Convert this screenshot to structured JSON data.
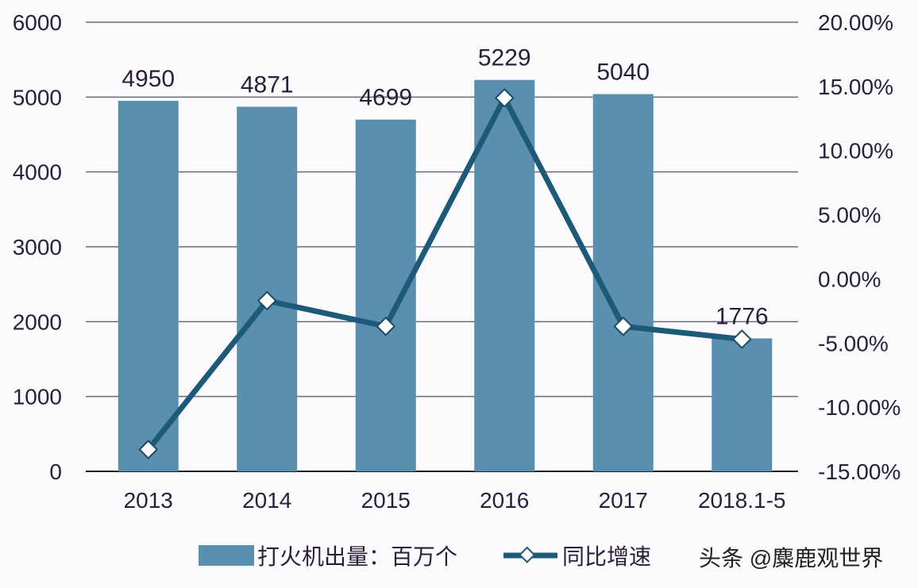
{
  "chart_data": {
    "type": "bar+line",
    "title": "",
    "categories": [
      "2013",
      "2014",
      "2015",
      "2016",
      "2017",
      "2018.1-5"
    ],
    "series": [
      {
        "name": "打火机出量：百万个",
        "type": "bar",
        "axis": "left",
        "values": [
          4950,
          4871,
          4699,
          5229,
          5040,
          1776
        ],
        "data_labels": [
          "4950",
          "4871",
          "4699",
          "5229",
          "5040",
          "1776"
        ],
        "color": "#5b8fb0"
      },
      {
        "name": "同比增速",
        "type": "line",
        "axis": "right",
        "marker": "diamond",
        "values": [
          -13.3,
          -1.7,
          -3.7,
          14.1,
          -3.7,
          -4.7
        ],
        "unit": "%",
        "color": "#1d5a7a"
      }
    ],
    "left_axis": {
      "min": 0,
      "max": 6000,
      "ticks": [
        "0",
        "1000",
        "2000",
        "3000",
        "4000",
        "5000",
        "6000"
      ]
    },
    "right_axis": {
      "min": -15,
      "max": 20,
      "ticks": [
        "-15.00%",
        "-10.00%",
        "-5.00%",
        "0.00%",
        "5.00%",
        "10.00%",
        "15.00%",
        "20.00%"
      ]
    },
    "xlabel": "",
    "ylabel": "",
    "grid": true,
    "legend_position": "bottom"
  },
  "legend": {
    "bar_label": "打火机出量：百万个",
    "line_label": "同比增速"
  },
  "watermark": "头条 @麋鹿观世界"
}
